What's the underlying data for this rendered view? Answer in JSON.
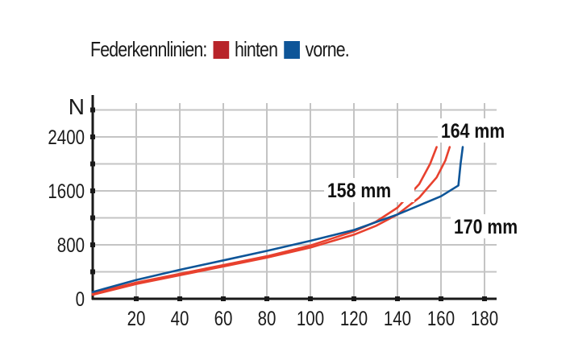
{
  "legend": {
    "title": "Federkennlinien:",
    "items": [
      {
        "label": "hinten",
        "color": "#b8242a"
      },
      {
        "label": "vorne.",
        "color": "#0e5598"
      }
    ]
  },
  "annotations": {
    "a158": "158 mm",
    "a164": "164 mm",
    "a170": "170 mm"
  },
  "axis": {
    "y_unit": "N"
  },
  "chart_data": {
    "type": "line",
    "title": "Federkennlinien: hinten vorne.",
    "xlabel": "",
    "ylabel": "N",
    "xlim": [
      0,
      185
    ],
    "ylim": [
      0,
      2800
    ],
    "x_ticks": [
      20,
      40,
      60,
      80,
      100,
      120,
      140,
      160,
      180
    ],
    "y_ticks": [
      0,
      800,
      1600,
      2400
    ],
    "grid": true,
    "legend_position": "top",
    "series": [
      {
        "name": "hinten 158 mm",
        "color": "#e8412e",
        "x": [
          0,
          20,
          40,
          60,
          80,
          100,
          120,
          130,
          140,
          150,
          155,
          158
        ],
        "y": [
          80,
          240,
          370,
          500,
          630,
          790,
          1000,
          1140,
          1350,
          1700,
          2000,
          2250
        ]
      },
      {
        "name": "hinten 164 mm",
        "color": "#e8412e",
        "x": [
          0,
          20,
          40,
          60,
          80,
          100,
          120,
          130,
          140,
          150,
          158,
          162,
          164
        ],
        "y": [
          60,
          220,
          350,
          480,
          610,
          760,
          950,
          1080,
          1250,
          1500,
          1800,
          2050,
          2250
        ]
      },
      {
        "name": "vorne 170 mm",
        "color": "#0e5598",
        "x": [
          0,
          20,
          40,
          60,
          80,
          100,
          120,
          140,
          160,
          168,
          169,
          170
        ],
        "y": [
          100,
          280,
          430,
          570,
          710,
          860,
          1020,
          1250,
          1520,
          1680,
          2000,
          2250
        ]
      }
    ]
  }
}
